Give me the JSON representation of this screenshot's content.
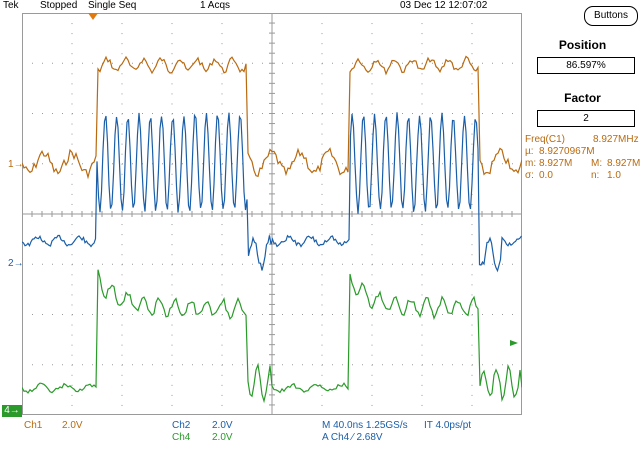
{
  "topbar": {
    "brand": "Tek",
    "status": "Stopped",
    "mode": "Single Seq",
    "acqs": "1 Acqs",
    "datetime": "03 Dec 12 12:07:02"
  },
  "side": {
    "buttons_label": "Buttons",
    "position_title": "Position",
    "position_value": "86.597%",
    "factor_title": "Factor",
    "factor_value": "2"
  },
  "measurement": {
    "title": "Freq(C1)",
    "value": "8.927MHz",
    "mu_label": "µ:",
    "mu_value": "8.9270967M",
    "m_label": "m:",
    "m_value": "8.927M",
    "M_label": "M:",
    "M_value": "8.927M",
    "sigma_label": "σ:",
    "sigma_value": "0.0",
    "n_label": "n:",
    "n_value": "1.0"
  },
  "markers": {
    "ch1": "1",
    "ch2": "2",
    "ch4": "4"
  },
  "bottom": {
    "ch1_label": "Ch1",
    "ch1_scale": "2.0V",
    "ch2_label": "Ch2",
    "ch2_scale": "2.0V",
    "ch4_label": "Ch4",
    "ch4_scale": "2.0V",
    "timebase": "M 40.0ns 1.25GS/s",
    "interval": "IT 4.0ps/pt",
    "trigger": "A  Ch4  ⁄  2.68V"
  },
  "colors": {
    "ch1": "#b86a10",
    "ch2": "#1a5ea8",
    "ch4": "#2a9a2a",
    "grid": "#9a9a9a"
  }
}
